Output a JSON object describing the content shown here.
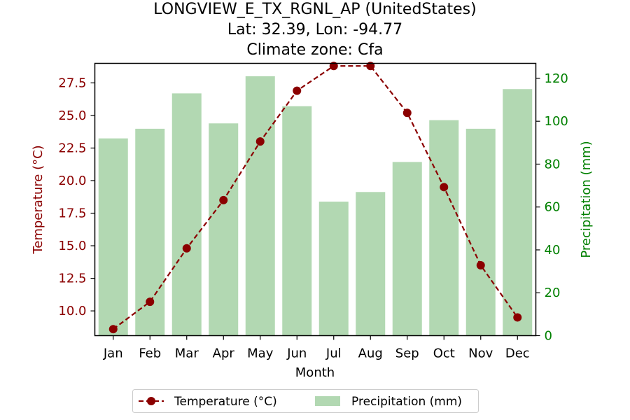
{
  "chart_data": {
    "type": "bar+line",
    "title_lines": [
      "LONGVIEW_E_TX_RGNL_AP (UnitedStates)",
      "Lat: 32.39, Lon: -94.77",
      "Climate zone: Cfa"
    ],
    "xlabel": "Month",
    "ylabel_left": "Temperature (°C)",
    "ylabel_right": "Precipitation (mm)",
    "categories": [
      "Jan",
      "Feb",
      "Mar",
      "Apr",
      "May",
      "Jun",
      "Jul",
      "Aug",
      "Sep",
      "Oct",
      "Nov",
      "Dec"
    ],
    "series": [
      {
        "name": "Temperature (°C)",
        "kind": "line",
        "axis": "left",
        "color": "#8b0000",
        "values": [
          8.6,
          10.7,
          14.8,
          18.5,
          23.0,
          26.9,
          28.8,
          28.8,
          25.2,
          19.5,
          13.5,
          9.5
        ]
      },
      {
        "name": "Precipitation (mm)",
        "kind": "bar",
        "axis": "right",
        "color": "#b2d8b2",
        "values": [
          92,
          96.5,
          113,
          99,
          121,
          107,
          62.5,
          67,
          81,
          100.5,
          96.5,
          115
        ]
      }
    ],
    "ylim_left": [
      8.1,
      29.0
    ],
    "yticks_left": [
      "10.0",
      "12.5",
      "15.0",
      "17.5",
      "20.0",
      "22.5",
      "25.0",
      "27.5"
    ],
    "ylim_right": [
      0,
      127
    ],
    "yticks_right": [
      "0",
      "20",
      "40",
      "60",
      "80",
      "100",
      "120"
    ],
    "left_axis_color": "#8b0000",
    "right_axis_color": "#008000",
    "grid": false,
    "legend_position": "bottom-center"
  }
}
